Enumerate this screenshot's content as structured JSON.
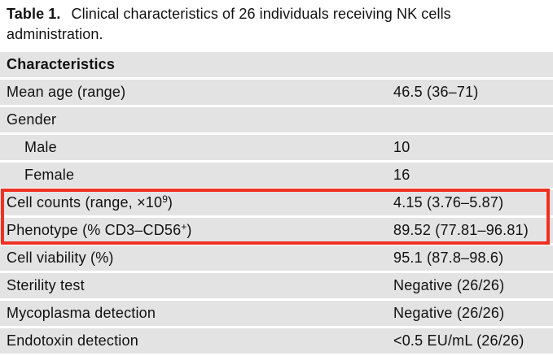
{
  "title": {
    "label": "Table 1.",
    "text": "Clinical characteristics of 26 individuals receiving NK cells administration."
  },
  "table": {
    "header": "Characteristics",
    "rows": [
      {
        "label": "Mean age (range)",
        "value": "46.5 (36–71)",
        "indent": false,
        "highlighted": false
      },
      {
        "label": "Gender",
        "value": "",
        "indent": false,
        "highlighted": false
      },
      {
        "label": "Male",
        "value": "10",
        "indent": true,
        "highlighted": false
      },
      {
        "label": "Female",
        "value": "16",
        "indent": true,
        "highlighted": false
      },
      {
        "label": "Cell counts (range, ×10⁹)",
        "value": "4.15 (3.76–5.87)",
        "indent": false,
        "highlighted": true
      },
      {
        "label": "Phenotype (% CD3–CD56⁺)",
        "value": "89.52 (77.81–96.81)",
        "indent": false,
        "highlighted": true
      },
      {
        "label": "Cell viability (%)",
        "value": "95.1 (87.8–98.6)",
        "indent": false,
        "highlighted": false
      },
      {
        "label": "Sterility test",
        "value": "Negative (26/26)",
        "indent": false,
        "highlighted": false
      },
      {
        "label": "Mycoplasma detection",
        "value": "Negative (26/26)",
        "indent": false,
        "highlighted": false
      },
      {
        "label": "Endotoxin detection",
        "value": "<0.5 EU/mL (26/26)",
        "indent": false,
        "highlighted": false
      }
    ]
  },
  "highlight": {
    "color": "#ee3124"
  },
  "colors": {
    "row_bg": "#e3e3e3",
    "text": "#111111",
    "page_bg": "#ffffff"
  }
}
